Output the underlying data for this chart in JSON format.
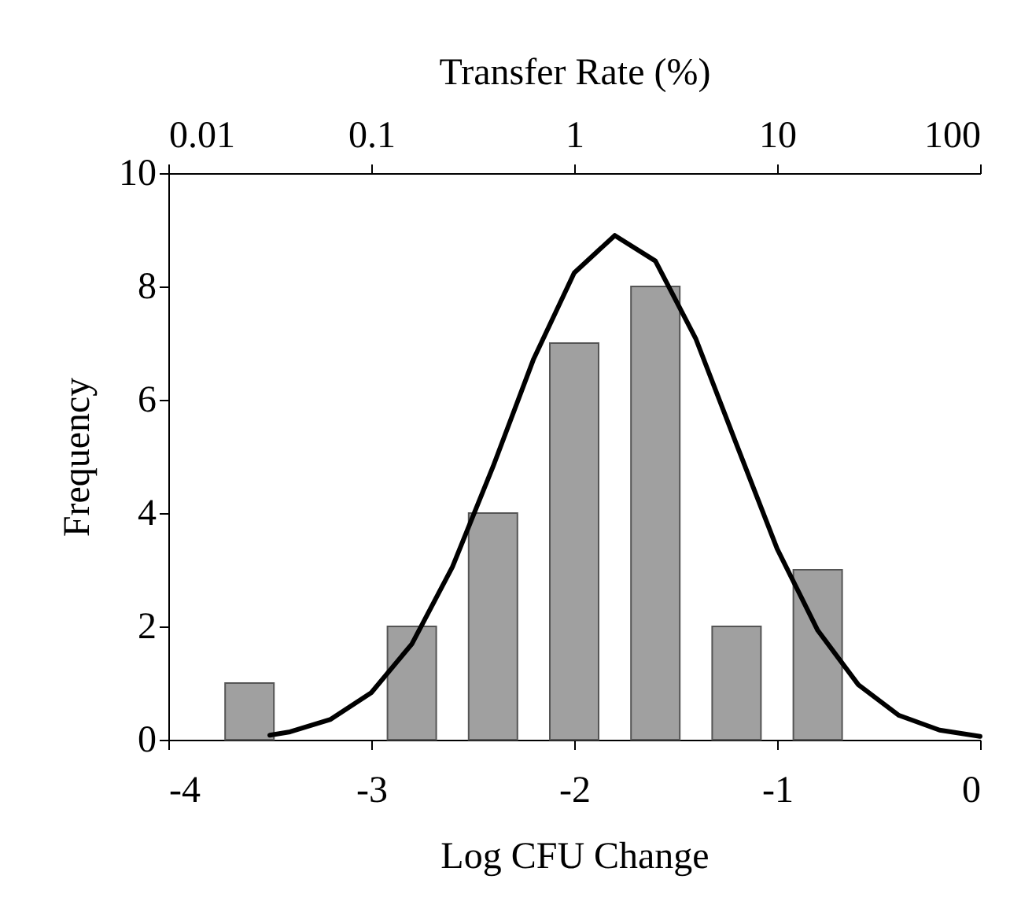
{
  "chart_data": {
    "type": "bar",
    "xlabel": "Log CFU Change",
    "ylabel": "Frequency",
    "x2label": "Transfer Rate (%)",
    "x": [
      -3.6,
      -2.8,
      -2.4,
      -2.0,
      -1.6,
      -1.2,
      -0.8
    ],
    "xlim": [
      -4,
      0
    ],
    "xticks": [
      -4,
      -3,
      -2,
      -1,
      0
    ],
    "x2lim": [
      0.01,
      100
    ],
    "x2ticks": [
      0.01,
      0.1,
      1,
      10,
      100
    ],
    "log": "x2",
    "ylim": [
      0,
      10
    ],
    "yticks": [
      0,
      2,
      4,
      6,
      8,
      10
    ],
    "grid": false,
    "series": [
      {
        "color": "#a0a0a0",
        "values": [
          1,
          2,
          4,
          7,
          8,
          2,
          3
        ]
      },
      {
        "type": "line",
        "color": "#000000",
        "x": [
          -3.5,
          -3.4,
          -3.2,
          -3.0,
          -2.8,
          -2.6,
          -2.4,
          -2.2,
          -2.0,
          -1.8,
          -1.6,
          -1.4,
          -1.2,
          -1.0,
          -0.8,
          -0.6,
          -0.4,
          -0.2,
          0
        ],
        "values": [
          0.08,
          0.14,
          0.36,
          0.83,
          1.69,
          3.05,
          4.82,
          6.72,
          8.24,
          8.9,
          8.45,
          7.07,
          5.21,
          3.37,
          1.93,
          0.97,
          0.43,
          0.17,
          0.06
        ]
      }
    ]
  }
}
